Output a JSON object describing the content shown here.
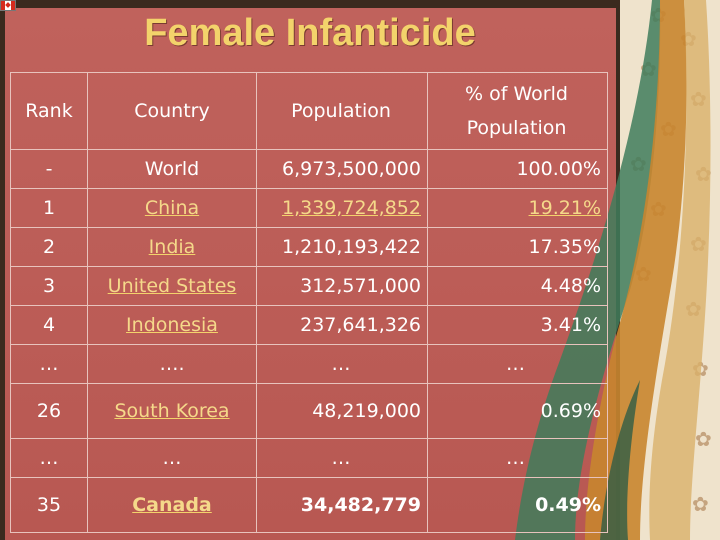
{
  "slide": {
    "title": "Female Infanticide",
    "icons": [
      "canada-flag-icon",
      "flower-pattern"
    ]
  },
  "table": {
    "headers": [
      "Rank",
      "Country",
      "Population",
      "% of World Population"
    ],
    "header_pct_line1": "% of World",
    "header_pct_line2": "Population",
    "rows": [
      {
        "rank": "-",
        "country": "World",
        "population": "6,973,500,000",
        "percent": "100.00%"
      },
      {
        "rank": "1",
        "country": "China",
        "population": "1,339,724,852",
        "percent": "19.21%"
      },
      {
        "rank": "2",
        "country": "India",
        "population": "1,210,193,422",
        "percent": "17.35%"
      },
      {
        "rank": "3",
        "country": "United States",
        "population": "312,571,000",
        "percent": "4.48%"
      },
      {
        "rank": "4",
        "country": "Indonesia",
        "population": "237,641,326",
        "percent": "3.41%"
      },
      {
        "rank": "…",
        "country": "….",
        "population": "…",
        "percent": "…"
      },
      {
        "rank": "26",
        "country": "South Korea",
        "population": "48,219,000",
        "percent": "0.69%"
      },
      {
        "rank": "…",
        "country": "…",
        "population": "…",
        "percent": "…"
      },
      {
        "rank": "35",
        "country": "Canada",
        "population": "34,482,779",
        "percent": "0.49%"
      }
    ]
  },
  "colors": {
    "background": "#b95a55",
    "title": "#f3d36b",
    "text": "#ffffff",
    "link": "#f5d98a",
    "deco_panel": "#efe3cc"
  }
}
